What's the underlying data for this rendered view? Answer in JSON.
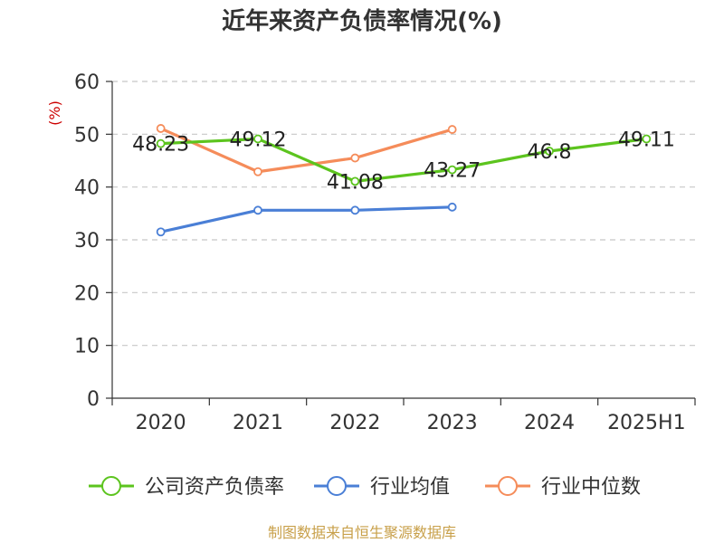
{
  "chart_data": {
    "type": "line",
    "title": "近年来资产负债率情况(%)",
    "ylabel": "(%)",
    "xlabel": "",
    "categories": [
      "2020",
      "2021",
      "2022",
      "2023",
      "2024",
      "2025H1"
    ],
    "ylim": [
      0,
      60
    ],
    "yticks": [
      0,
      10,
      20,
      30,
      40,
      50,
      60
    ],
    "grid": true,
    "legend_position": "bottom",
    "series": [
      {
        "name": "公司资产负债率",
        "color": "#5cc41e",
        "values": [
          48.23,
          49.12,
          41.08,
          43.27,
          46.8,
          49.11
        ],
        "labels": [
          "48.23",
          "49.12",
          "41.08",
          "43.27",
          "46.8",
          "49.11"
        ]
      },
      {
        "name": "行业均值",
        "color": "#4a7fd6",
        "values": [
          31.5,
          35.6,
          35.6,
          36.2,
          null,
          null
        ]
      },
      {
        "name": "行业中位数",
        "color": "#f58c5a",
        "values": [
          51.1,
          42.9,
          45.5,
          50.9,
          null,
          null
        ]
      }
    ]
  },
  "source": "制图数据来自恒生聚源数据库"
}
